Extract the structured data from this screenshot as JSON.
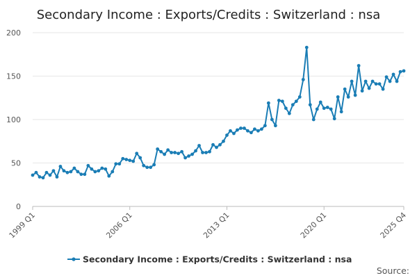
{
  "chart_data": {
    "type": "line",
    "title": "Secondary Income : Exports/Credits : Switzerland : nsa",
    "xlabel": "",
    "ylabel": "",
    "ylim": [
      0,
      200
    ],
    "yticks": [
      0,
      50,
      100,
      150,
      200
    ],
    "xtick_labels": [
      "1999 Q1",
      "2006 Q1",
      "2013 Q1",
      "2020 Q1",
      "2025 Q4"
    ],
    "x_start": "1999 Q1",
    "x_end": "2025 Q4",
    "grid": true,
    "legend_position": "bottom",
    "source_label": "Source:",
    "series_color": "#1a7db5",
    "series": [
      {
        "name": "Secondary Income : Exports/Credits : Switzerland : nsa",
        "values": [
          36,
          39,
          34,
          33,
          39,
          36,
          41,
          34,
          46,
          41,
          39,
          40,
          44,
          40,
          37,
          37,
          47,
          43,
          40,
          41,
          44,
          43,
          35,
          40,
          49,
          49,
          55,
          54,
          53,
          52,
          61,
          56,
          47,
          45,
          45,
          48,
          66,
          63,
          60,
          65,
          62,
          62,
          61,
          63,
          56,
          58,
          60,
          64,
          70,
          62,
          62,
          63,
          71,
          68,
          71,
          75,
          82,
          87,
          84,
          88,
          90,
          90,
          87,
          85,
          89,
          87,
          89,
          93,
          119,
          100,
          93,
          122,
          121,
          113,
          107,
          117,
          121,
          126,
          146,
          183,
          117,
          100,
          112,
          120,
          113,
          114,
          112,
          101,
          126,
          109,
          135,
          126,
          144,
          128,
          162,
          133,
          144,
          136,
          144,
          141,
          141,
          135,
          149,
          144,
          152,
          144,
          155,
          156
        ]
      }
    ]
  }
}
